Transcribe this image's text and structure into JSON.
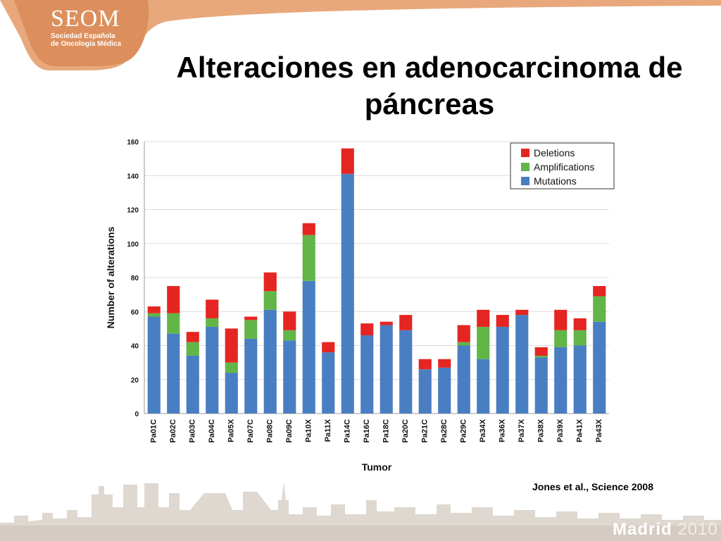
{
  "logo": {
    "name": "SEOM",
    "subtitle_line1": "Sociedad Española",
    "subtitle_line2": "de Oncología Médica"
  },
  "slide": {
    "title": "Alteraciones en adenocarcinoma de páncreas",
    "citation": "Jones et al., Science 2008",
    "footer_city": "Madrid",
    "footer_year": "2010"
  },
  "colors": {
    "deletions": "#e52521",
    "amplifications": "#62b547",
    "mutations": "#4a7ec2",
    "logo_band": "#e8a87c"
  },
  "chart_data": {
    "type": "bar",
    "stacked": true,
    "xlabel": "Tumor",
    "ylabel": "Number of alterations",
    "ylim": [
      0,
      160
    ],
    "yticks": [
      0,
      20,
      40,
      60,
      80,
      100,
      120,
      140,
      160
    ],
    "grid": true,
    "legend_position": "top-right",
    "categories": [
      "Pa01C",
      "Pa02C",
      "Pa03C",
      "Pa04C",
      "Pa05X",
      "Pa07C",
      "Pa08C",
      "Pa09C",
      "Pa10X",
      "Pa11X",
      "Pa14C",
      "Pa16C",
      "Pa18C",
      "Pa20C",
      "Pa21C",
      "Pa28C",
      "Pa29C",
      "Pa34X",
      "Pa36X",
      "Pa37X",
      "Pa38X",
      "Pa39X",
      "Pa41X",
      "Pa43X"
    ],
    "series": [
      {
        "name": "Mutations",
        "color": "#4a7ec2",
        "values": [
          57,
          47,
          34,
          51,
          24,
          44,
          61,
          43,
          78,
          36,
          141,
          46,
          52,
          49,
          26,
          27,
          40,
          32,
          51,
          58,
          33,
          39,
          40,
          54
        ]
      },
      {
        "name": "Amplifications",
        "color": "#62b547",
        "values": [
          2,
          12,
          8,
          5,
          6,
          11,
          11,
          6,
          27,
          0,
          0,
          0,
          0,
          0,
          0,
          0,
          2,
          19,
          0,
          0,
          1,
          10,
          9,
          15
        ]
      },
      {
        "name": "Deletions",
        "color": "#e52521",
        "values": [
          4,
          16,
          6,
          11,
          20,
          2,
          11,
          11,
          7,
          6,
          15,
          7,
          2,
          9,
          6,
          5,
          10,
          10,
          7,
          3,
          5,
          12,
          7,
          6
        ]
      }
    ],
    "legend_order": [
      "Deletions",
      "Amplifications",
      "Mutations"
    ]
  }
}
